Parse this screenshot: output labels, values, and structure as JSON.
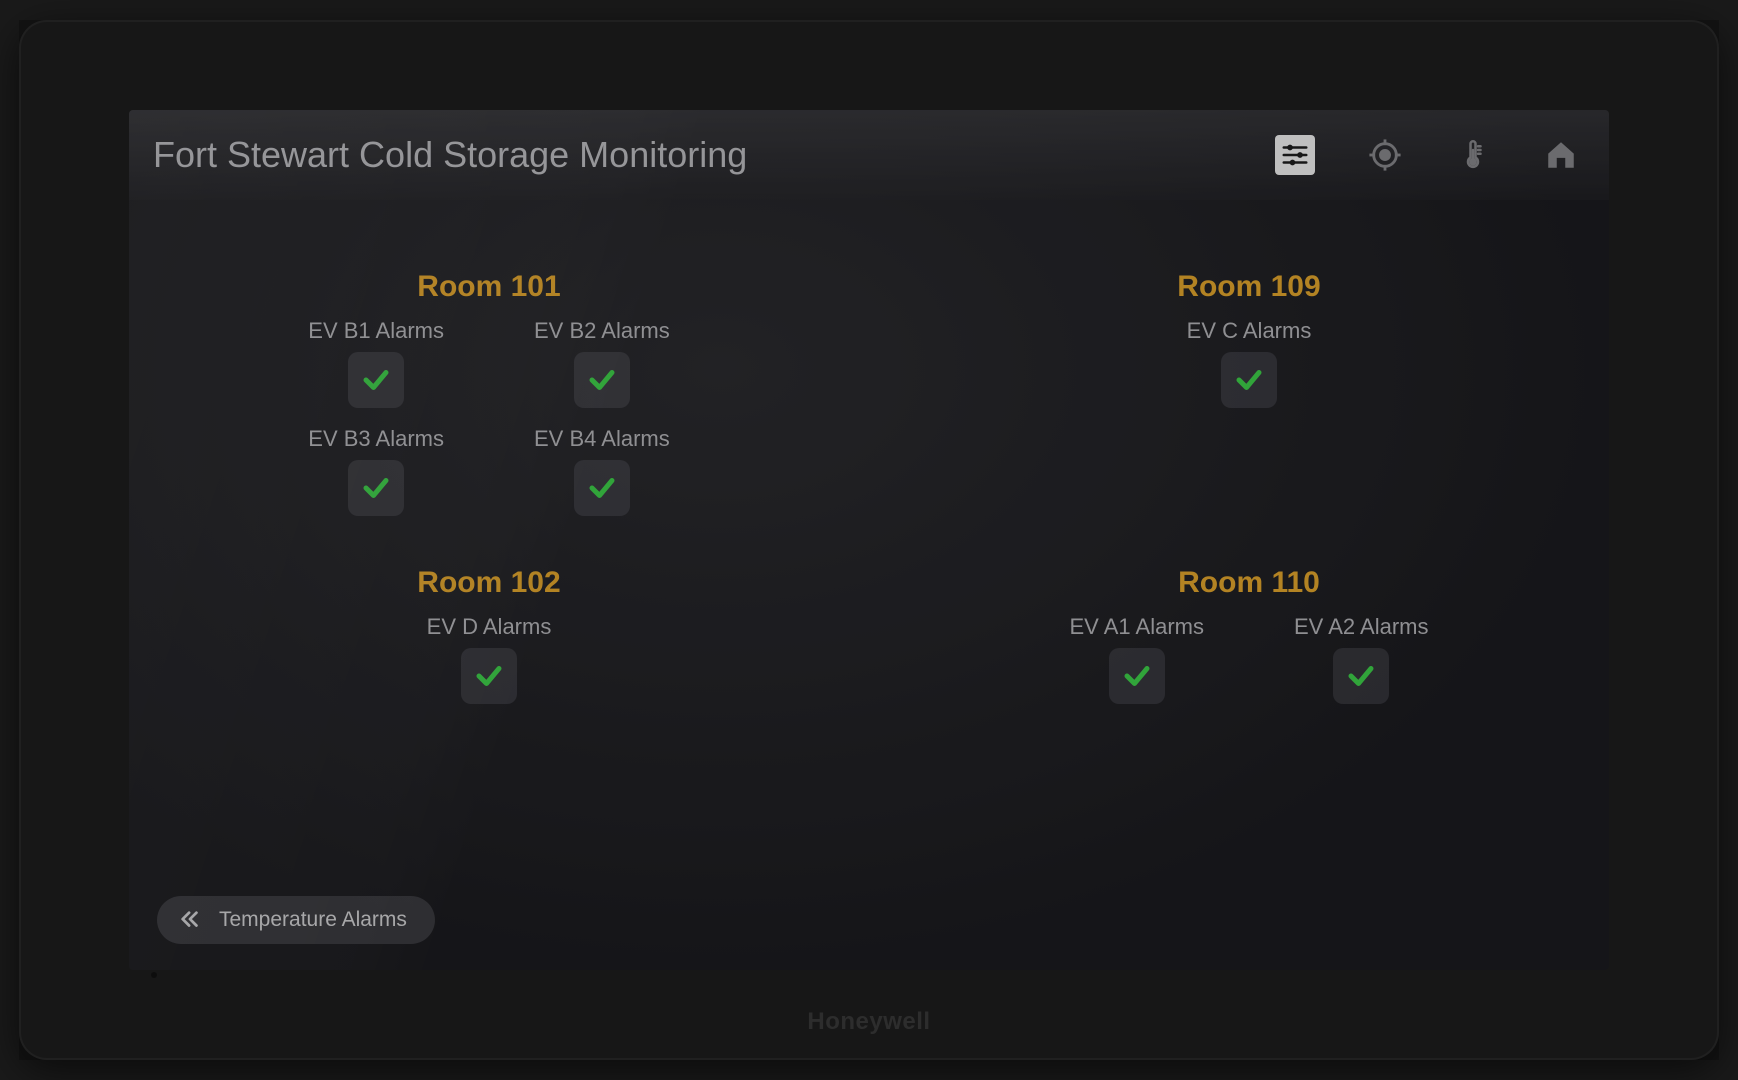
{
  "device_brand": "Honeywell",
  "header": {
    "title": "Fort Stewart Cold Storage Monitoring",
    "icons": {
      "settings": {
        "active": true
      },
      "target": {
        "active": false
      },
      "thermometer": {
        "active": false
      },
      "home": {
        "active": false
      }
    }
  },
  "colors": {
    "room_title": "#e6a82e",
    "alarm_label": "#b8b8bc",
    "check_ok": "#3fd24b",
    "header_text": "#bfbfc3",
    "icon_inactive": "#8a8a8e",
    "icon_active_bg": "#f5f5f5",
    "icon_active_fg": "#1e1e1e",
    "tile_bg": "rgba(120,120,128,0.28)",
    "back_btn_bg": "rgba(130,130,136,0.3)"
  },
  "rooms": [
    {
      "title": "Room 101",
      "cols": 2,
      "alarms": [
        {
          "label": "EV B1 Alarms",
          "ok": true
        },
        {
          "label": "EV B2 Alarms",
          "ok": true
        },
        {
          "label": "EV B3 Alarms",
          "ok": true
        },
        {
          "label": "EV B4 Alarms",
          "ok": true
        }
      ]
    },
    {
      "title": "Room 109",
      "cols": 1,
      "alarms": [
        {
          "label": "EV C Alarms",
          "ok": true
        }
      ]
    },
    {
      "title": "Room 102",
      "cols": 1,
      "alarms": [
        {
          "label": "EV D Alarms",
          "ok": true
        }
      ]
    },
    {
      "title": "Room 110",
      "cols": 2,
      "alarms": [
        {
          "label": "EV A1 Alarms",
          "ok": true
        },
        {
          "label": "EV A2 Alarms",
          "ok": true
        }
      ]
    }
  ],
  "footer": {
    "back_label": "Temperature Alarms"
  }
}
